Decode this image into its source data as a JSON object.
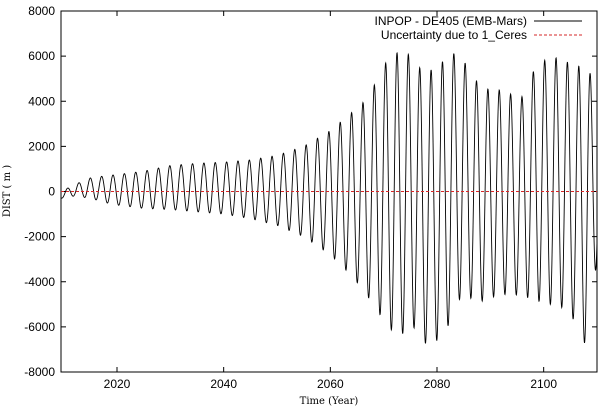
{
  "chart_data": {
    "type": "line",
    "title": "",
    "xlabel": "Time (Year)",
    "ylabel": "DIST ( m )",
    "xlim": [
      2009.5,
      2110
    ],
    "ylim": [
      -8000,
      8000
    ],
    "xticks": [
      2020,
      2040,
      2060,
      2080,
      2100
    ],
    "yticks": [
      -8000,
      -6000,
      -4000,
      -2000,
      0,
      2000,
      4000,
      6000,
      8000
    ],
    "grid": false,
    "legend_position": "top-right",
    "oscillation_period_years": 2.13,
    "series": [
      {
        "name": "INPOP - DE405 (EMB-Mars)",
        "color": "#000000",
        "envelope": {
          "years": [
            2009.5,
            2012,
            2015,
            2018,
            2020,
            2025,
            2030,
            2035,
            2040,
            2045,
            2050,
            2055,
            2060,
            2063,
            2066,
            2068,
            2070,
            2072,
            2074,
            2076,
            2078,
            2080,
            2082,
            2084,
            2086,
            2088,
            2090,
            2092,
            2094,
            2096,
            2098,
            2100,
            2102,
            2104,
            2106,
            2108,
            2110
          ],
          "upper": [
            0,
            300,
            600,
            700,
            750,
            900,
            1150,
            1250,
            1300,
            1400,
            1600,
            2000,
            2700,
            3300,
            3900,
            4600,
            5600,
            6100,
            6300,
            5600,
            5300,
            5500,
            6000,
            6200,
            5400,
            4700,
            4500,
            4500,
            4300,
            4200,
            5300,
            5800,
            5950,
            5800,
            5500,
            5700,
            4400
          ],
          "lower": [
            -300,
            -200,
            -300,
            -500,
            -600,
            -750,
            -800,
            -900,
            -1000,
            -1200,
            -1500,
            -2000,
            -2800,
            -3500,
            -4300,
            -5000,
            -5700,
            -6300,
            -6300,
            -6000,
            -6800,
            -6600,
            -6000,
            -4800,
            -4700,
            -4900,
            -4700,
            -4600,
            -4500,
            -4700,
            -4700,
            -5000,
            -5000,
            -5200,
            -5800,
            -6900,
            -3000
          ]
        }
      },
      {
        "name": "Uncertainty due to 1_Ceres",
        "color": "#d62728",
        "line_style": "dashed",
        "x": [
          2009.5,
          2030,
          2050,
          2070,
          2090,
          2110
        ],
        "y": [
          0,
          0,
          0,
          0,
          0,
          0
        ]
      }
    ]
  }
}
